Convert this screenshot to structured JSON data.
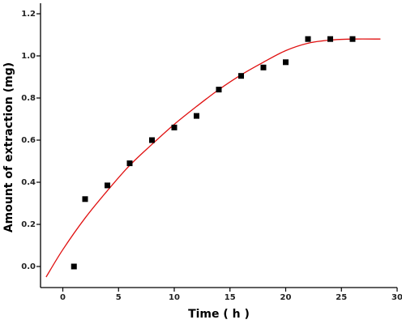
{
  "chart_data": {
    "type": "scatter",
    "title": "",
    "xlabel": "Time ( h )",
    "ylabel": "Amount of extraction (mg)",
    "xlim": [
      -2,
      30
    ],
    "ylim": [
      -0.1,
      1.25
    ],
    "xticks": [
      0,
      5,
      10,
      15,
      20,
      25,
      30
    ],
    "yticks": [
      0.0,
      0.2,
      0.4,
      0.6,
      0.8,
      1.0,
      1.2
    ],
    "xtick_labels": [
      "0",
      "5",
      "10",
      "15",
      "20",
      "25",
      "30"
    ],
    "ytick_labels": [
      "0.0",
      "0.2",
      "0.4",
      "0.6",
      "0.8",
      "1.0",
      "1.2"
    ],
    "grid": false,
    "series": [
      {
        "kind": "points",
        "marker": "square",
        "color": "#000000",
        "x": [
          1,
          2,
          4,
          6,
          8,
          10,
          12,
          14,
          16,
          18,
          20,
          22,
          24,
          26
        ],
        "y": [
          0.0,
          0.32,
          0.385,
          0.49,
          0.6,
          0.66,
          0.715,
          0.84,
          0.905,
          0.945,
          0.97,
          1.08,
          1.08,
          1.08
        ]
      },
      {
        "kind": "line",
        "color": "#e01010",
        "x": [
          -1.5,
          0,
          2,
          4,
          6,
          8,
          10,
          12,
          14,
          16,
          18,
          20,
          22,
          24,
          26,
          28.5
        ],
        "y": [
          -0.05,
          0.08,
          0.23,
          0.36,
          0.48,
          0.58,
          0.675,
          0.76,
          0.84,
          0.91,
          0.97,
          1.025,
          1.06,
          1.075,
          1.08,
          1.08
        ]
      }
    ]
  }
}
